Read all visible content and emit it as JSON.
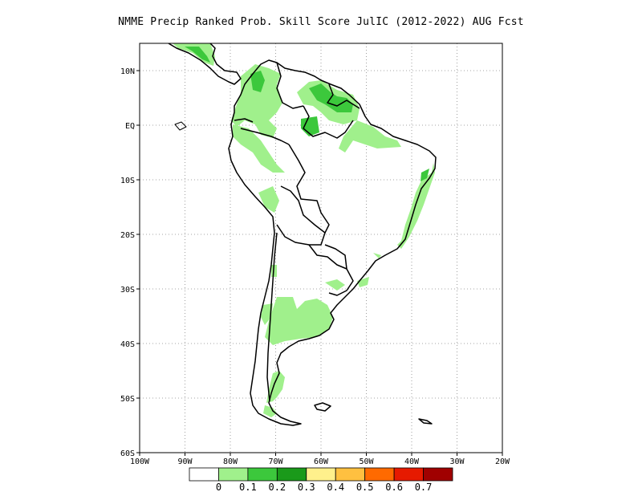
{
  "title": "NMME Precip Ranked Prob. Skill Score JulIC (2012-2022) AUG Fcst",
  "map": {
    "lon_range": [
      -100,
      -20
    ],
    "lat_range": [
      -60,
      15
    ],
    "lat_ticks": [
      {
        "value": 10,
        "label": "10N"
      },
      {
        "value": 0,
        "label": "EQ"
      },
      {
        "value": -10,
        "label": "10S"
      },
      {
        "value": -20,
        "label": "20S"
      },
      {
        "value": -30,
        "label": "30S"
      },
      {
        "value": -40,
        "label": "40S"
      },
      {
        "value": -50,
        "label": "50S"
      },
      {
        "value": -60,
        "label": "60S"
      }
    ],
    "lon_ticks": [
      {
        "value": -100,
        "label": "100W"
      },
      {
        "value": -90,
        "label": "90W"
      },
      {
        "value": -80,
        "label": "80W"
      },
      {
        "value": -70,
        "label": "70W"
      },
      {
        "value": -60,
        "label": "60W"
      },
      {
        "value": -50,
        "label": "50W"
      },
      {
        "value": -40,
        "label": "40W"
      },
      {
        "value": -30,
        "label": "30W"
      },
      {
        "value": -20,
        "label": "20W"
      }
    ],
    "gridlines": "dotted",
    "coastline_color": "#000000"
  },
  "colorbar": {
    "labels": [
      "0",
      "0.1",
      "0.2",
      "0.3",
      "0.4",
      "0.5",
      "0.6",
      "0.7"
    ],
    "colors": [
      "#ffffff",
      "#a0f08c",
      "#3cc83c",
      "#1a9a1a",
      "#fff08c",
      "#ffc040",
      "#ff6a00",
      "#e61a00",
      "#a00000"
    ]
  },
  "skill_regions": [
    {
      "level": "0-0.1",
      "color": "#a0f08c",
      "area": "northern Colombia"
    },
    {
      "level": "0.1-0.2",
      "color": "#3cc83c",
      "area": "Venezuela / Guianas"
    },
    {
      "level": "0-0.1",
      "color": "#a0f08c",
      "area": "eastern Brazil coast"
    },
    {
      "level": "0-0.1",
      "color": "#a0f08c",
      "area": "central Argentina"
    },
    {
      "level": "0-0.1",
      "color": "#a0f08c",
      "area": "southern Patagonia"
    }
  ]
}
